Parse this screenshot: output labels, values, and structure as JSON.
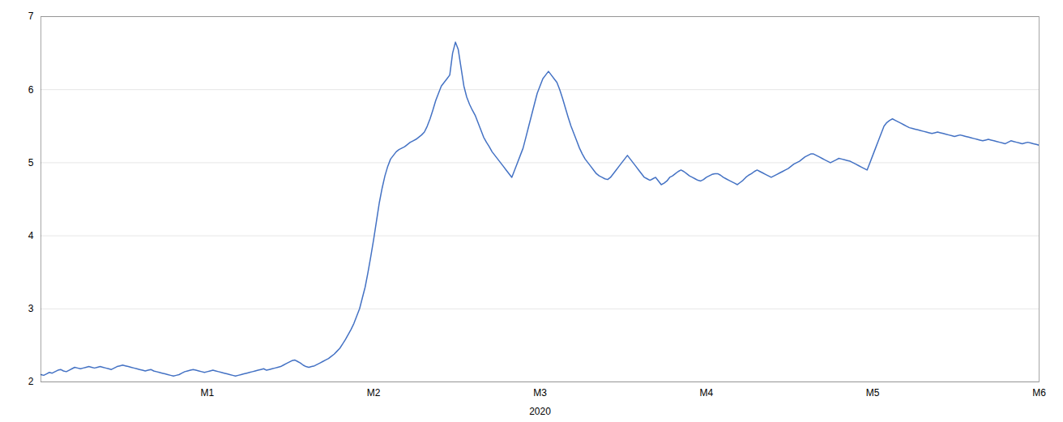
{
  "chart_data": {
    "type": "line",
    "xlabel": "2020",
    "color": "#4472C4",
    "xlim": [
      0,
      6
    ],
    "xticks": [
      {
        "value": 1,
        "label": "M1"
      },
      {
        "value": 2,
        "label": "M2"
      },
      {
        "value": 3,
        "label": "M3"
      },
      {
        "value": 4,
        "label": "M4"
      },
      {
        "value": 5,
        "label": "M5"
      },
      {
        "value": 6,
        "label": "M6"
      }
    ],
    "ylim": [
      2,
      7
    ],
    "yticks": [
      2,
      3,
      4,
      5,
      6,
      7
    ],
    "grid": true,
    "x": [
      0,
      0.0169,
      0.0339,
      0.0508,
      0.0678,
      0.0847,
      0.1017,
      0.1186,
      0.1356,
      0.1525,
      0.1695,
      0.1864,
      0.2034,
      0.2203,
      0.2373,
      0.2542,
      0.2712,
      0.2881,
      0.3051,
      0.322,
      0.339,
      0.3559,
      0.3729,
      0.3898,
      0.4068,
      0.4237,
      0.4407,
      0.4576,
      0.4746,
      0.4915,
      0.5085,
      0.5254,
      0.5424,
      0.5593,
      0.5763,
      0.5932,
      0.6102,
      0.6271,
      0.6441,
      0.661,
      0.678,
      0.6949,
      0.7119,
      0.7288,
      0.7458,
      0.7627,
      0.7797,
      0.7966,
      0.8136,
      0.8305,
      0.8475,
      0.8644,
      0.8814,
      0.8983,
      0.9153,
      0.9322,
      0.9492,
      0.9661,
      0.9831,
      1,
      1.0169,
      1.0339,
      1.0508,
      1.0678,
      1.0847,
      1.1017,
      1.1186,
      1.1356,
      1.1525,
      1.1695,
      1.1864,
      1.2034,
      1.2203,
      1.2373,
      1.2542,
      1.2712,
      1.2881,
      1.3051,
      1.322,
      1.339,
      1.3559,
      1.3729,
      1.3898,
      1.4068,
      1.4237,
      1.4407,
      1.4576,
      1.4746,
      1.4915,
      1.5085,
      1.5254,
      1.5424,
      1.5593,
      1.5763,
      1.5932,
      1.6102,
      1.6271,
      1.6441,
      1.661,
      1.678,
      1.6949,
      1.7119,
      1.7288,
      1.7458,
      1.7627,
      1.7797,
      1.7966,
      1.8136,
      1.8305,
      1.8475,
      1.8644,
      1.8814,
      1.8983,
      1.9153,
      1.9322,
      1.9492,
      1.9661,
      1.9831,
      2,
      2.0169,
      2.0339,
      2.0508,
      2.0678,
      2.0847,
      2.1017,
      2.1186,
      2.1356,
      2.1525,
      2.1695,
      2.1864,
      2.2034,
      2.2203,
      2.2373,
      2.2542,
      2.2712,
      2.2881,
      2.3051,
      2.322,
      2.339,
      2.3559,
      2.3729,
      2.3898,
      2.4068,
      2.4237,
      2.4407,
      2.4576,
      2.4746,
      2.4915,
      2.5085,
      2.5254,
      2.5424,
      2.5593,
      2.5763,
      2.5932,
      2.6102,
      2.6271,
      2.6441,
      2.661,
      2.678,
      2.6949,
      2.7119,
      2.7288,
      2.7458,
      2.7627,
      2.7797,
      2.7966,
      2.8136,
      2.8305,
      2.8475,
      2.8644,
      2.8814,
      2.8983,
      2.9153,
      2.9322,
      2.9492,
      2.9661,
      2.9831,
      3,
      3.0169,
      3.0339,
      3.0508,
      3.0678,
      3.0847,
      3.1017,
      3.1186,
      3.1356,
      3.1525,
      3.1695,
      3.1864,
      3.2034,
      3.2203,
      3.2373,
      3.2542,
      3.2712,
      3.2881,
      3.3051,
      3.322,
      3.339,
      3.3559,
      3.3729,
      3.3898,
      3.4068,
      3.4237,
      3.4407,
      3.4576,
      3.4746,
      3.4915,
      3.5085,
      3.5254,
      3.5424,
      3.5593,
      3.5763,
      3.5932,
      3.6102,
      3.6271,
      3.6441,
      3.661,
      3.678,
      3.6949,
      3.7119,
      3.7288,
      3.7458,
      3.7627,
      3.7797,
      3.7966,
      3.8136,
      3.8305,
      3.8475,
      3.8644,
      3.8814,
      3.8983,
      3.9153,
      3.9322,
      3.9492,
      3.9661,
      3.9831,
      4,
      4.0169,
      4.0339,
      4.0508,
      4.0678,
      4.0847,
      4.1017,
      4.1186,
      4.1356,
      4.1525,
      4.1695,
      4.1864,
      4.2034,
      4.2203,
      4.2373,
      4.2542,
      4.2712,
      4.2881,
      4.3051,
      4.322,
      4.339,
      4.3559,
      4.3729,
      4.3898,
      4.4068,
      4.4237,
      4.4407,
      4.4576,
      4.4746,
      4.4915,
      4.5085,
      4.5254,
      4.5424,
      4.5593,
      4.5763,
      4.5932,
      4.6102,
      4.6271,
      4.6441,
      4.661,
      4.678,
      4.6949,
      4.7119,
      4.7288,
      4.7458,
      4.7627,
      4.7797,
      4.7966,
      4.8136,
      4.8305,
      4.8475,
      4.8644,
      4.8814,
      4.8983,
      4.9153,
      4.9322,
      4.9492,
      4.9661,
      4.9831,
      5,
      5.0169,
      5.0339,
      5.0508,
      5.0678,
      5.0847,
      5.1017,
      5.1186,
      5.1356,
      5.1525,
      5.1695,
      5.1864,
      5.2034,
      5.2203,
      5.2373,
      5.2542,
      5.2712,
      5.2881,
      5.3051,
      5.322,
      5.339,
      5.3559,
      5.3729,
      5.3898,
      5.4068,
      5.4237,
      5.4407,
      5.4576,
      5.4746,
      5.4915,
      5.5085,
      5.5254,
      5.5424,
      5.5593,
      5.5763,
      5.5932,
      5.6102,
      5.6271,
      5.6441,
      5.661,
      5.678,
      5.6949,
      5.7119,
      5.7288,
      5.7458,
      5.7627,
      5.7797,
      5.7966,
      5.8136,
      5.8305,
      5.8475,
      5.8644,
      5.8814,
      5.8983,
      5.9153,
      5.9322,
      5.9492,
      5.9661,
      5.9831,
      6
    ],
    "values": [
      2.1,
      2.09,
      2.11,
      2.13,
      2.12,
      2.14,
      2.16,
      2.17,
      2.15,
      2.14,
      2.16,
      2.18,
      2.2,
      2.19,
      2.18,
      2.19,
      2.2,
      2.21,
      2.2,
      2.19,
      2.2,
      2.21,
      2.2,
      2.19,
      2.18,
      2.17,
      2.19,
      2.21,
      2.22,
      2.23,
      2.22,
      2.21,
      2.2,
      2.19,
      2.18,
      2.17,
      2.16,
      2.15,
      2.16,
      2.17,
      2.15,
      2.14,
      2.13,
      2.12,
      2.11,
      2.1,
      2.09,
      2.08,
      2.09,
      2.1,
      2.12,
      2.14,
      2.15,
      2.16,
      2.17,
      2.16,
      2.15,
      2.14,
      2.13,
      2.14,
      2.15,
      2.16,
      2.15,
      2.14,
      2.13,
      2.12,
      2.11,
      2.1,
      2.09,
      2.08,
      2.09,
      2.1,
      2.11,
      2.12,
      2.13,
      2.14,
      2.15,
      2.16,
      2.17,
      2.18,
      2.16,
      2.17,
      2.18,
      2.19,
      2.2,
      2.21,
      2.23,
      2.25,
      2.27,
      2.29,
      2.3,
      2.28,
      2.26,
      2.23,
      2.21,
      2.2,
      2.21,
      2.22,
      2.24,
      2.26,
      2.28,
      2.3,
      2.32,
      2.35,
      2.38,
      2.42,
      2.46,
      2.52,
      2.58,
      2.65,
      2.72,
      2.8,
      2.9,
      3.0,
      3.15,
      3.3,
      3.5,
      3.72,
      3.95,
      4.2,
      4.45,
      4.65,
      4.82,
      4.95,
      5.05,
      5.1,
      5.15,
      5.18,
      5.2,
      5.22,
      5.25,
      5.28,
      5.3,
      5.32,
      5.35,
      5.38,
      5.42,
      5.5,
      5.6,
      5.72,
      5.85,
      5.95,
      6.05,
      6.1,
      6.15,
      6.2,
      6.5,
      6.65,
      6.55,
      6.3,
      6.05,
      5.9,
      5.8,
      5.72,
      5.65,
      5.55,
      5.45,
      5.35,
      5.28,
      5.22,
      5.15,
      5.1,
      5.05,
      5.0,
      4.95,
      4.9,
      4.85,
      4.8,
      4.9,
      5.0,
      5.1,
      5.2,
      5.35,
      5.5,
      5.65,
      5.8,
      5.95,
      6.05,
      6.15,
      6.2,
      6.25,
      6.2,
      6.15,
      6.1,
      6.0,
      5.88,
      5.75,
      5.62,
      5.5,
      5.4,
      5.3,
      5.2,
      5.12,
      5.05,
      5.0,
      4.95,
      4.9,
      4.85,
      4.82,
      4.8,
      4.78,
      4.77,
      4.8,
      4.85,
      4.9,
      4.95,
      5.0,
      5.05,
      5.1,
      5.05,
      5.0,
      4.95,
      4.9,
      4.85,
      4.8,
      4.78,
      4.76,
      4.78,
      4.8,
      4.75,
      4.7,
      4.72,
      4.75,
      4.8,
      4.82,
      4.85,
      4.88,
      4.9,
      4.88,
      4.85,
      4.82,
      4.8,
      4.78,
      4.76,
      4.75,
      4.77,
      4.8,
      4.82,
      4.84,
      4.85,
      4.85,
      4.83,
      4.8,
      4.78,
      4.76,
      4.74,
      4.72,
      4.7,
      4.73,
      4.76,
      4.8,
      4.83,
      4.85,
      4.88,
      4.9,
      4.88,
      4.86,
      4.84,
      4.82,
      4.8,
      4.82,
      4.84,
      4.86,
      4.88,
      4.9,
      4.92,
      4.95,
      4.98,
      5.0,
      5.02,
      5.05,
      5.08,
      5.1,
      5.12,
      5.12,
      5.1,
      5.08,
      5.06,
      5.04,
      5.02,
      5.0,
      5.02,
      5.04,
      5.06,
      5.05,
      5.04,
      5.03,
      5.02,
      5.0,
      4.98,
      4.96,
      4.94,
      4.92,
      4.9,
      5.0,
      5.1,
      5.2,
      5.3,
      5.4,
      5.5,
      5.55,
      5.58,
      5.6,
      5.58,
      5.56,
      5.54,
      5.52,
      5.5,
      5.48,
      5.47,
      5.46,
      5.45,
      5.44,
      5.43,
      5.42,
      5.41,
      5.4,
      5.41,
      5.42,
      5.41,
      5.4,
      5.39,
      5.38,
      5.37,
      5.36,
      5.37,
      5.38,
      5.37,
      5.36,
      5.35,
      5.34,
      5.33,
      5.32,
      5.31,
      5.3,
      5.31,
      5.32,
      5.31,
      5.3,
      5.29,
      5.28,
      5.27,
      5.26,
      5.28,
      5.3,
      5.29,
      5.28,
      5.27,
      5.26,
      5.27,
      5.28,
      5.27,
      5.26,
      5.25,
      5.24
    ]
  }
}
